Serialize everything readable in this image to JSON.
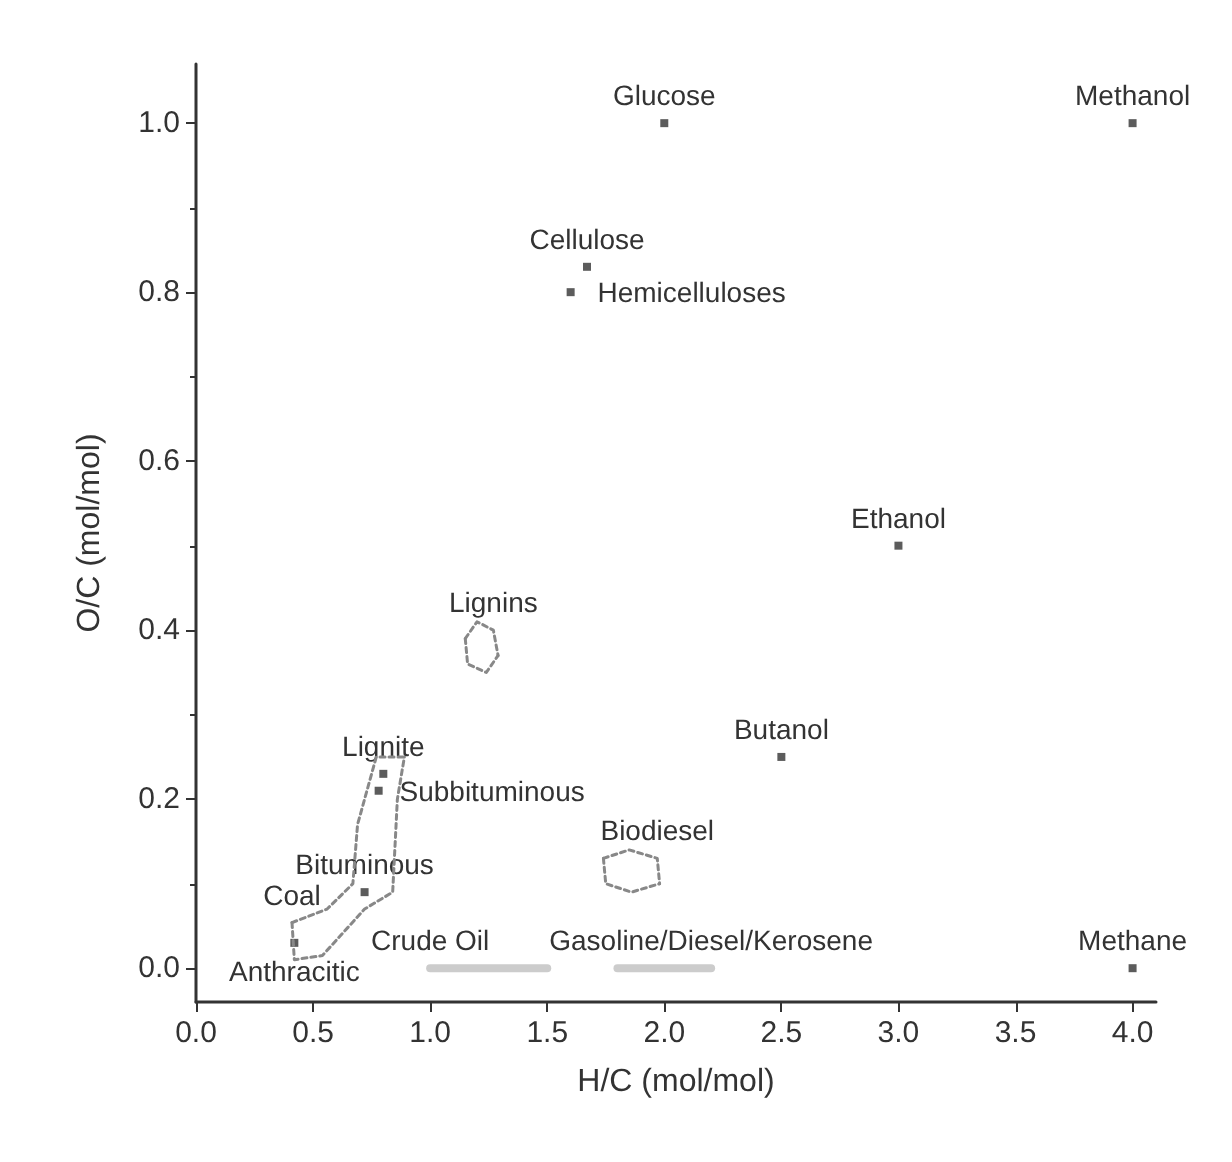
{
  "chart_data": {
    "type": "scatter",
    "xlabel": "H/C (mol/mol)",
    "ylabel": "O/C (mol/mol)",
    "xlim": [
      0,
      4.1
    ],
    "ylim": [
      -0.04,
      1.07
    ],
    "xticks": [
      {
        "value": 0,
        "label": "0.0"
      },
      0.5,
      {
        "value": 1,
        "label": "1.0"
      },
      1.5,
      {
        "value": 2,
        "label": "2.0"
      },
      2.5,
      {
        "value": 3,
        "label": "3.0"
      },
      3.5,
      {
        "value": 4,
        "label": "4.0"
      }
    ],
    "yticks": [
      {
        "value": 0,
        "label": "0.0"
      },
      0.2,
      0.4,
      0.6,
      0.8,
      {
        "value": 1,
        "label": "1.0"
      }
    ],
    "grid": false,
    "marker": "square",
    "series": [
      {
        "color": "#333333",
        "x": [
          2.0,
          4.0,
          1.67,
          1.6,
          3.0,
          2.5,
          4.0,
          0.8,
          0.78,
          0.72,
          0.42
        ],
        "values": [
          1.0,
          1.0,
          0.83,
          0.8,
          0.5,
          0.25,
          0.0,
          0.23,
          0.21,
          0.09,
          0.03
        ]
      },
      {
        "type": "line",
        "marker": "none",
        "line_style": "dotted",
        "color": "#888888",
        "x": [
          1.15,
          1.2,
          1.27,
          1.29
        ],
        "values": [
          0.39,
          0.41,
          0.4,
          0.37
        ]
      },
      {
        "type": "line",
        "marker": "none",
        "line_style": "dotted",
        "color": "#888888",
        "x": [
          1.15,
          1.16,
          1.24,
          1.29
        ],
        "values": [
          0.39,
          0.36,
          0.35,
          0.37
        ]
      },
      {
        "type": "line",
        "marker": "none",
        "line_style": "dotted",
        "color": "#888888",
        "x": [
          1.74,
          1.85,
          1.97,
          1.98
        ],
        "values": [
          0.13,
          0.14,
          0.13,
          0.1
        ]
      },
      {
        "type": "line",
        "marker": "none",
        "line_style": "dotted",
        "color": "#888888",
        "x": [
          1.74,
          1.75,
          1.86,
          1.98
        ],
        "values": [
          0.13,
          0.1,
          0.09,
          0.1
        ]
      },
      {
        "type": "line",
        "marker": "none",
        "line_style": "dotted",
        "color": "#888888",
        "x": [
          0.41,
          0.56,
          0.67,
          0.69,
          0.77,
          0.89
        ],
        "values": [
          0.054,
          0.07,
          0.1,
          0.17,
          0.25,
          0.25
        ]
      },
      {
        "type": "line",
        "marker": "none",
        "line_style": "dotted",
        "color": "#888888",
        "x": [
          0.41,
          0.42,
          0.54,
          0.72,
          0.84,
          0.86,
          0.89
        ],
        "values": [
          0.054,
          0.01,
          0.015,
          0.07,
          0.09,
          0.2,
          0.25
        ]
      },
      {
        "type": "line",
        "marker": "none",
        "line_style": "solid",
        "color": "#cccccc",
        "x": [
          1.0,
          1.5
        ],
        "values": [
          0.0,
          0.0
        ]
      },
      {
        "type": "line",
        "marker": "none",
        "line_style": "solid",
        "color": "#cccccc",
        "x": [
          1.8,
          2.2
        ],
        "values": [
          0.0,
          0.0
        ]
      }
    ],
    "annotations": [
      {
        "text": "Glucose",
        "x": 2.0,
        "y": 1.0
      },
      {
        "text": "Methanol",
        "x": 4.0,
        "y": 1.0
      },
      {
        "text": "Cellulose",
        "x": 1.67,
        "y": 0.83
      },
      {
        "text": "Hemicelluloses",
        "x": 1.6,
        "y": 0.8
      },
      {
        "text": "Ethanol",
        "x": 3.0,
        "y": 0.5
      },
      {
        "text": "Lignins",
        "x": 1.27,
        "y": 0.4
      },
      {
        "text": "Butanol",
        "x": 2.5,
        "y": 0.25
      },
      {
        "text": "Lignite",
        "x": 0.8,
        "y": 0.23
      },
      {
        "text": "Subbituminous",
        "x": 0.78,
        "y": 0.21
      },
      {
        "text": "Coal",
        "x": 0.41,
        "y": 0.054
      },
      {
        "text": "Biodiesel",
        "x": 1.97,
        "y": 0.13
      },
      {
        "text": "Bituminous",
        "x": 0.72,
        "y": 0.09
      },
      {
        "text": "Crude Oil",
        "x": 1.0,
        "y": 0.0
      },
      {
        "text": "Gasoline/Diesel/Kerosene",
        "x": 2.2,
        "y": 0.0
      },
      {
        "text": "Methane",
        "x": 4.0,
        "y": 0.0
      },
      {
        "text": "Anthracitic",
        "x": 0.42,
        "y": 0.03
      }
    ]
  }
}
